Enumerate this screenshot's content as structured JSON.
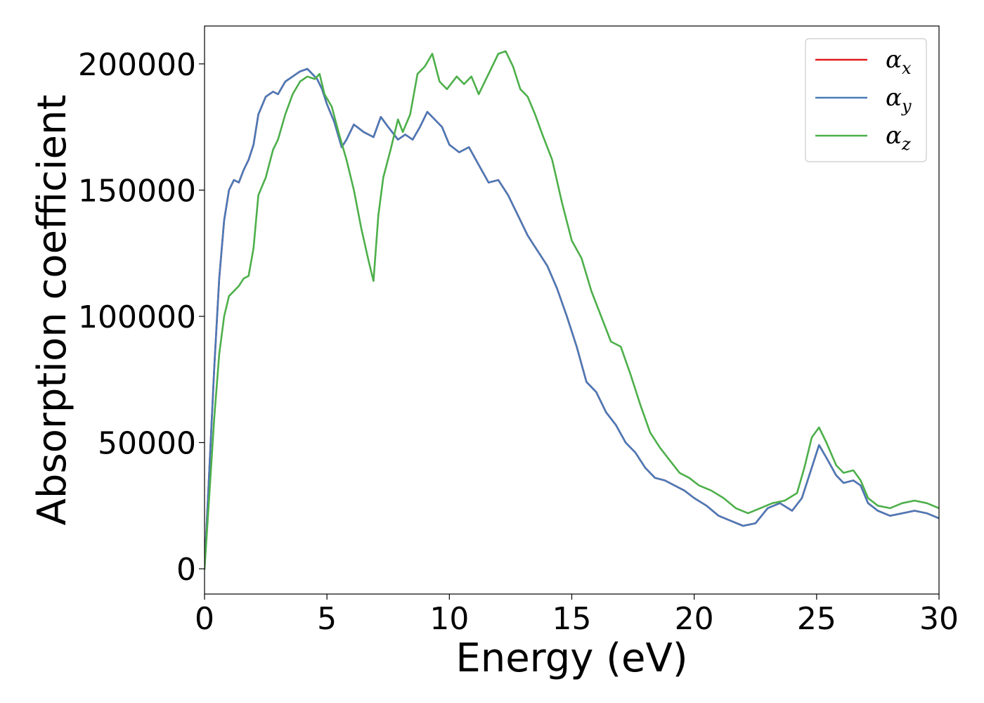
{
  "chart_data": {
    "type": "line",
    "xlabel": "Energy (eV)",
    "ylabel": "Absorption coefficient",
    "xlim": [
      0,
      30
    ],
    "ylim": [
      -10000,
      215000
    ],
    "xticks": [
      0,
      5,
      10,
      15,
      20,
      25,
      30
    ],
    "yticks": [
      0,
      50000,
      100000,
      150000,
      200000
    ],
    "grid": false,
    "legend_position": "top-right",
    "series": [
      {
        "name": "α_x",
        "symbol": "α",
        "subscript": "x",
        "color": "#e41a1c",
        "x": [
          0,
          0.2,
          0.4,
          0.6,
          0.8,
          1.0,
          1.2,
          1.4,
          1.6,
          1.8,
          2.0,
          2.2,
          2.5,
          2.8,
          3.0,
          3.3,
          3.6,
          3.9,
          4.2,
          4.4,
          4.6,
          4.8,
          5.0,
          5.3,
          5.6,
          5.8,
          6.1,
          6.5,
          6.9,
          7.2,
          7.5,
          7.9,
          8.2,
          8.5,
          8.8,
          9.1,
          9.4,
          9.7,
          10.0,
          10.4,
          10.8,
          11.2,
          11.6,
          12.0,
          12.4,
          12.8,
          13.2,
          13.6,
          14.0,
          14.4,
          14.8,
          15.2,
          15.6,
          16.0,
          16.4,
          16.8,
          17.2,
          17.6,
          18.0,
          18.4,
          18.8,
          19.2,
          19.6,
          20.0,
          20.5,
          21.0,
          21.5,
          22.0,
          22.5,
          23.0,
          23.5,
          24.0,
          24.4,
          24.8,
          25.1,
          25.4,
          25.8,
          26.1,
          26.5,
          26.8,
          27.1,
          27.5,
          28.0,
          28.5,
          29.0,
          29.5,
          30.0
        ],
        "y": [
          0,
          40000,
          80000,
          115000,
          138000,
          150000,
          154000,
          153000,
          158000,
          162000,
          168000,
          180000,
          187000,
          189000,
          188000,
          193000,
          195000,
          197000,
          198000,
          196000,
          194000,
          190000,
          184000,
          177000,
          167000,
          170000,
          176000,
          173000,
          171000,
          179000,
          175000,
          170000,
          172000,
          170000,
          175000,
          181000,
          178000,
          175000,
          168000,
          165000,
          167000,
          160000,
          153000,
          154000,
          148000,
          140000,
          132000,
          126000,
          120000,
          111000,
          100000,
          88000,
          74000,
          70000,
          62000,
          57000,
          50000,
          46000,
          40000,
          36000,
          35000,
          33000,
          31000,
          28000,
          25000,
          21000,
          19000,
          17000,
          18000,
          24000,
          26000,
          23000,
          28000,
          40000,
          49000,
          44000,
          37000,
          34000,
          35000,
          33000,
          26000,
          23000,
          21000,
          22000,
          23000,
          22000,
          20000
        ]
      },
      {
        "name": "α_y",
        "symbol": "α",
        "subscript": "y",
        "color": "#4a7ab8",
        "x": [
          0,
          0.2,
          0.4,
          0.6,
          0.8,
          1.0,
          1.2,
          1.4,
          1.6,
          1.8,
          2.0,
          2.2,
          2.5,
          2.8,
          3.0,
          3.3,
          3.6,
          3.9,
          4.2,
          4.4,
          4.6,
          4.8,
          5.0,
          5.3,
          5.6,
          5.8,
          6.1,
          6.5,
          6.9,
          7.2,
          7.5,
          7.9,
          8.2,
          8.5,
          8.8,
          9.1,
          9.4,
          9.7,
          10.0,
          10.4,
          10.8,
          11.2,
          11.6,
          12.0,
          12.4,
          12.8,
          13.2,
          13.6,
          14.0,
          14.4,
          14.8,
          15.2,
          15.6,
          16.0,
          16.4,
          16.8,
          17.2,
          17.6,
          18.0,
          18.4,
          18.8,
          19.2,
          19.6,
          20.0,
          20.5,
          21.0,
          21.5,
          22.0,
          22.5,
          23.0,
          23.5,
          24.0,
          24.4,
          24.8,
          25.1,
          25.4,
          25.8,
          26.1,
          26.5,
          26.8,
          27.1,
          27.5,
          28.0,
          28.5,
          29.0,
          29.5,
          30.0
        ],
        "y": [
          0,
          40000,
          80000,
          115000,
          138000,
          150000,
          154000,
          153000,
          158000,
          162000,
          168000,
          180000,
          187000,
          189000,
          188000,
          193000,
          195000,
          197000,
          198000,
          196000,
          194000,
          190000,
          184000,
          177000,
          167000,
          170000,
          176000,
          173000,
          171000,
          179000,
          175000,
          170000,
          172000,
          170000,
          175000,
          181000,
          178000,
          175000,
          168000,
          165000,
          167000,
          160000,
          153000,
          154000,
          148000,
          140000,
          132000,
          126000,
          120000,
          111000,
          100000,
          88000,
          74000,
          70000,
          62000,
          57000,
          50000,
          46000,
          40000,
          36000,
          35000,
          33000,
          31000,
          28000,
          25000,
          21000,
          19000,
          17000,
          18000,
          24000,
          26000,
          23000,
          28000,
          40000,
          49000,
          44000,
          37000,
          34000,
          35000,
          33000,
          26000,
          23000,
          21000,
          22000,
          23000,
          22000,
          20000
        ]
      },
      {
        "name": "α_z",
        "symbol": "α",
        "subscript": "z",
        "color": "#4daf4a",
        "x": [
          0,
          0.2,
          0.4,
          0.6,
          0.8,
          1.0,
          1.2,
          1.4,
          1.6,
          1.8,
          2.0,
          2.2,
          2.5,
          2.8,
          3.0,
          3.3,
          3.6,
          3.9,
          4.2,
          4.5,
          4.7,
          4.9,
          5.2,
          5.5,
          5.8,
          6.1,
          6.4,
          6.7,
          6.9,
          7.1,
          7.3,
          7.6,
          7.9,
          8.1,
          8.4,
          8.7,
          9.0,
          9.3,
          9.6,
          9.9,
          10.3,
          10.6,
          10.9,
          11.2,
          11.6,
          12.0,
          12.3,
          12.6,
          12.9,
          13.2,
          13.5,
          13.8,
          14.2,
          14.6,
          15.0,
          15.4,
          15.8,
          16.2,
          16.6,
          17.0,
          17.4,
          17.8,
          18.2,
          18.6,
          19.0,
          19.4,
          19.8,
          20.2,
          20.7,
          21.2,
          21.7,
          22.2,
          22.7,
          23.2,
          23.7,
          24.2,
          24.5,
          24.8,
          25.1,
          25.4,
          25.8,
          26.1,
          26.5,
          26.8,
          27.1,
          27.5,
          28.0,
          28.5,
          29.0,
          29.5,
          30.0
        ],
        "y": [
          0,
          30000,
          60000,
          85000,
          100000,
          108000,
          110000,
          112000,
          115000,
          116000,
          127000,
          148000,
          155000,
          166000,
          170000,
          180000,
          188000,
          193000,
          195000,
          194000,
          196000,
          188000,
          183000,
          172000,
          162000,
          150000,
          135000,
          122000,
          114000,
          140000,
          155000,
          166000,
          178000,
          173000,
          180000,
          196000,
          199000,
          204000,
          193000,
          190000,
          195000,
          192000,
          195000,
          188000,
          196000,
          204000,
          205000,
          199000,
          190000,
          187000,
          180000,
          172000,
          162000,
          145000,
          130000,
          123000,
          110000,
          100000,
          90000,
          88000,
          77000,
          65000,
          54000,
          48000,
          43000,
          38000,
          36000,
          33000,
          31000,
          28000,
          24000,
          22000,
          24000,
          26000,
          27000,
          30000,
          40000,
          52000,
          56000,
          50000,
          41000,
          38000,
          39000,
          35000,
          28000,
          25000,
          24000,
          26000,
          27000,
          26000,
          24000
        ]
      }
    ]
  }
}
